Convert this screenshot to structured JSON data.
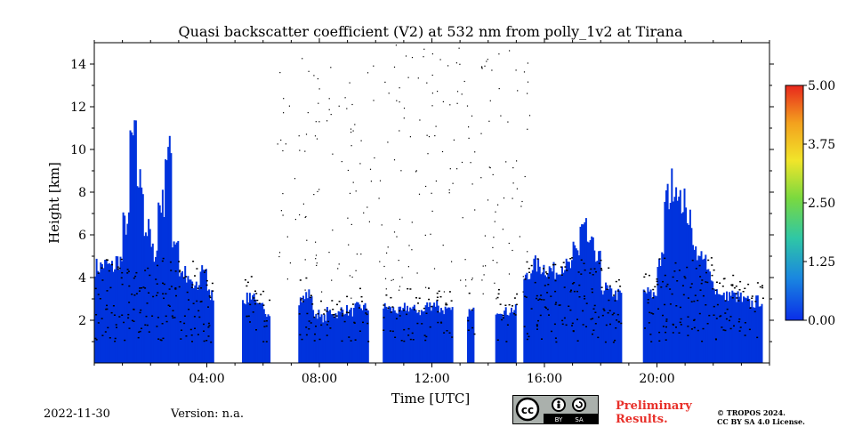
{
  "chart_data": {
    "type": "heatmap",
    "title": "Quasi backscatter coefficient (V2) at 532 nm from polly_1v2 at Tirana",
    "xlabel": "Time [UTC]",
    "ylabel": "Height [km]",
    "xlim": [
      0,
      24
    ],
    "ylim": [
      0,
      15
    ],
    "x_ticks": [
      4,
      8,
      12,
      16,
      20
    ],
    "x_tick_labels": [
      "04:00",
      "08:00",
      "12:00",
      "16:00",
      "20:00"
    ],
    "y_ticks": [
      2,
      4,
      6,
      8,
      10,
      12,
      14
    ],
    "y_tick_labels": [
      "2",
      "4",
      "6",
      "8",
      "10",
      "12",
      "14"
    ],
    "colorbar": {
      "min": 0.0,
      "max": 5.0,
      "ticks": [
        0.0,
        1.25,
        2.5,
        3.75,
        5.0
      ],
      "tick_labels": [
        "0.00",
        "1.25",
        "2.50",
        "3.75",
        "5.00"
      ]
    },
    "signal_profile": {
      "description": "approximate top height (km) of detected signal per time bin, 0 = no data",
      "time_hours": [
        0.0,
        0.25,
        0.5,
        0.75,
        1.0,
        1.25,
        1.5,
        1.75,
        2.0,
        2.25,
        2.5,
        2.75,
        3.0,
        3.25,
        3.5,
        3.75,
        4.0,
        4.25,
        4.5,
        4.75,
        5.0,
        5.25,
        5.5,
        5.75,
        6.0,
        6.25,
        6.5,
        6.75,
        7.0,
        7.25,
        7.5,
        7.75,
        8.0,
        8.25,
        8.5,
        8.75,
        9.0,
        9.25,
        9.5,
        9.75,
        10.0,
        10.25,
        10.5,
        10.75,
        11.0,
        11.25,
        11.5,
        11.75,
        12.0,
        12.25,
        12.5,
        12.75,
        13.0,
        13.25,
        13.5,
        13.75,
        14.0,
        14.25,
        14.5,
        14.75,
        15.0,
        15.25,
        15.5,
        15.75,
        16.0,
        16.25,
        16.5,
        16.75,
        17.0,
        17.25,
        17.5,
        17.75,
        18.0,
        18.25,
        18.5,
        18.75,
        19.0,
        19.25,
        19.5,
        19.75,
        20.0,
        20.25,
        20.5,
        20.75,
        21.0,
        21.25,
        21.5,
        21.75,
        22.0,
        22.25,
        22.5,
        22.75,
        23.0,
        23.25,
        23.5,
        23.75
      ],
      "top_km": [
        4.5,
        4.6,
        4.5,
        4.8,
        6.5,
        10.5,
        8.5,
        6.2,
        5.2,
        7.5,
        9.8,
        5.8,
        4.2,
        3.8,
        3.5,
        4.5,
        3.2,
        0,
        0,
        0,
        0,
        3.0,
        3.2,
        2.6,
        2.4,
        0,
        0,
        0,
        0,
        3.0,
        3.2,
        2.3,
        2.1,
        2.4,
        2.3,
        2.5,
        2.4,
        2.6,
        2.6,
        0,
        0,
        2.6,
        2.5,
        2.4,
        2.6,
        2.5,
        2.4,
        2.7,
        2.8,
        2.5,
        2.4,
        0,
        0,
        2.4,
        0,
        0,
        0,
        2.5,
        2.4,
        2.5,
        0,
        4.0,
        4.6,
        4.5,
        4.4,
        4.3,
        4.6,
        4.5,
        5.2,
        6.5,
        5.5,
        4.8,
        3.5,
        3.3,
        3.2,
        0,
        0,
        0,
        3.3,
        3.2,
        4.8,
        7.8,
        8.4,
        7.5,
        7.0,
        5.2,
        4.8,
        4.2,
        3.4,
        3.1,
        3.2,
        3.1,
        2.9,
        2.8,
        2.9,
        0
      ],
      "aerosol_value": 0.0
    }
  },
  "footer": {
    "date": "2022-11-30",
    "version": "Version: n.a.",
    "preliminary_line1": "Preliminary",
    "preliminary_line2": "Results.",
    "copyright_line1": "© TROPOS 2024.",
    "copyright_line2": "CC BY SA 4.0 License.",
    "license_tag_by": "BY",
    "license_tag_sa": "SA"
  },
  "colors": {
    "signal": "#0033dd",
    "noise": "#000000",
    "colorbar_stops": [
      "#0a2ee8",
      "#1a87e0",
      "#2fc7a5",
      "#7ad93f",
      "#f1e52a",
      "#f3a11e",
      "#e8271d"
    ],
    "preliminary": "#e8302a"
  }
}
